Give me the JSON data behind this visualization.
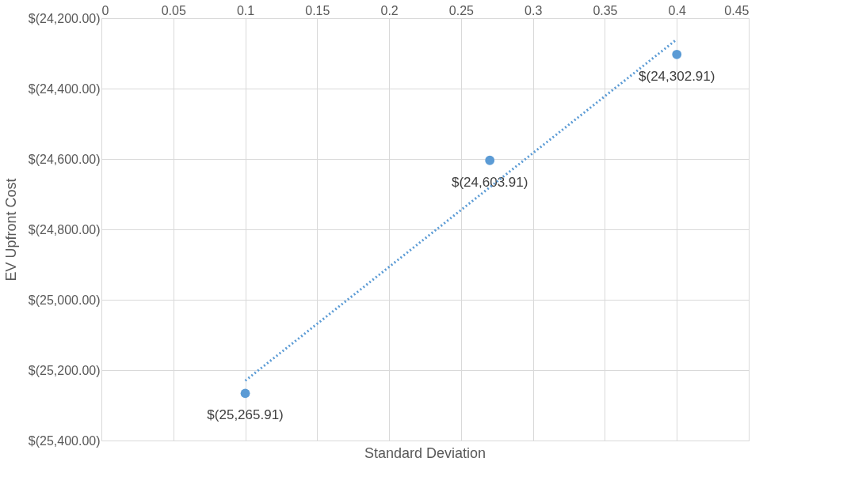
{
  "chart_data": {
    "type": "scatter",
    "xlabel": "Standard Deviation",
    "ylabel": "EV Upfront Cost",
    "series": [
      {
        "color": "#5b9bd5",
        "x": [
          0.1,
          0.27,
          0.4
        ],
        "values": [
          -25265.91,
          -24603.91,
          -24302.91
        ],
        "value_labels": [
          "$(25,265.91)",
          "$(24,603.91)",
          "$(24,302.91)"
        ],
        "marker": "circle"
      },
      {
        "type": "line",
        "color": "#5b9bd5",
        "x": [
          0.1,
          0.4
        ],
        "values": [
          -25230,
          -24260
        ],
        "line_style": "dotted",
        "marker": "none"
      }
    ],
    "xlim": [
      0,
      0.45
    ],
    "xticks": [
      0,
      0.05,
      0.1,
      0.15,
      0.2,
      0.25,
      0.3,
      0.35,
      0.4,
      0.45
    ],
    "ylim": [
      -25400,
      -24200
    ],
    "yticks": [
      {
        "value": -25400,
        "label": "$(25,400.00)"
      },
      {
        "value": -25200,
        "label": "$(25,200.00)"
      },
      {
        "value": -25000,
        "label": "$(25,000.00)"
      },
      {
        "value": -24800,
        "label": "$(24,800.00)"
      },
      {
        "value": -24600,
        "label": "$(24,600.00)"
      },
      {
        "value": -24400,
        "label": "$(24,400.00)"
      },
      {
        "value": -24200,
        "label": "$(24,200.00)"
      }
    ],
    "grid": true
  }
}
